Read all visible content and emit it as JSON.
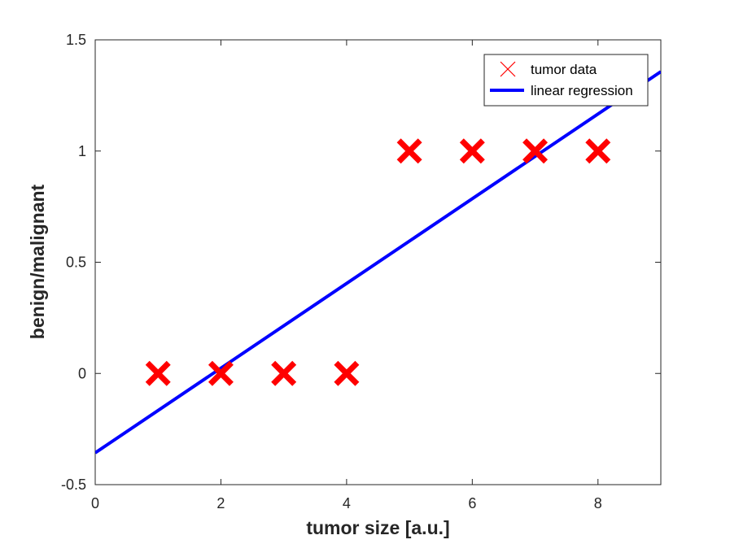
{
  "chart_data": {
    "type": "scatter",
    "title": "",
    "xlabel": "tumor size [a.u.]",
    "ylabel": "benign/malignant",
    "xlim": [
      0,
      9
    ],
    "ylim": [
      -0.5,
      1.5
    ],
    "xticks": [
      0,
      2,
      4,
      6,
      8
    ],
    "yticks": [
      -0.5,
      0,
      0.5,
      1,
      1.5
    ],
    "xtick_labels": [
      "0",
      "2",
      "4",
      "6",
      "8"
    ],
    "ytick_labels": [
      "-0.5",
      "0",
      "0.5",
      "1",
      "1.5"
    ],
    "grid": false,
    "legend_position": "top-right",
    "series": [
      {
        "name": "tumor data",
        "kind": "scatter",
        "marker": "x",
        "color": "#ff0000",
        "x": [
          1,
          2,
          3,
          4,
          5,
          6,
          7,
          8
        ],
        "y": [
          0,
          0,
          0,
          0,
          1,
          1,
          1,
          1
        ]
      },
      {
        "name": "linear regression",
        "kind": "line",
        "color": "#0000ff",
        "x": [
          0,
          9
        ],
        "y": [
          -0.357,
          1.357
        ]
      }
    ]
  }
}
